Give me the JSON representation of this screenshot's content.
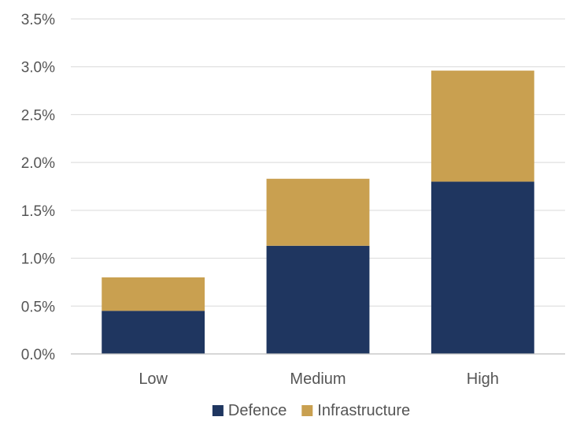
{
  "chart_data": {
    "type": "bar",
    "stacked": true,
    "title": "",
    "xlabel": "",
    "ylabel": "",
    "categories": [
      "Low",
      "Medium",
      "High"
    ],
    "series": [
      {
        "name": "Defence",
        "color": "#1f3660",
        "values": [
          0.45,
          1.13,
          1.8
        ]
      },
      {
        "name": "Infrastructure",
        "color": "#c9a050",
        "values": [
          0.35,
          0.7,
          1.16
        ]
      }
    ],
    "ylim": [
      0,
      3.5
    ],
    "yticks": [
      0.0,
      0.5,
      1.0,
      1.5,
      2.0,
      2.5,
      3.0,
      3.5
    ],
    "ytick_labels": [
      "0.0%",
      "0.5%",
      "1.0%",
      "1.5%",
      "2.0%",
      "2.5%",
      "3.0%",
      "3.5%"
    ],
    "grid": true,
    "legend_position": "bottom-center"
  }
}
